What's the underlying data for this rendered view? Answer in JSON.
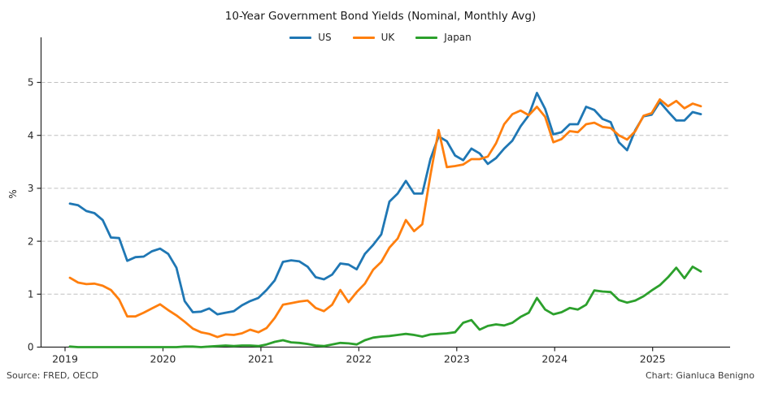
{
  "title": "10-Year Government Bond Yields (Nominal, Monthly Avg)",
  "footer": {
    "source": "Source: FRED, OECD",
    "credit": "Chart: Gianluca Benigno"
  },
  "chart_data": {
    "type": "line",
    "title": "10-Year Government Bond Yields (Nominal, Monthly Avg)",
    "xlabel": "",
    "ylabel": "%",
    "x_start": "2019-01",
    "x_end": "2025-06",
    "x_frequency": "monthly",
    "x_tick_labels": [
      "2019",
      "2020",
      "2021",
      "2022",
      "2023",
      "2024",
      "2025"
    ],
    "y_ticks": [
      0,
      1,
      2,
      3,
      4,
      5
    ],
    "ylim": [
      0,
      5.85
    ],
    "grid": "horizontal-dashed",
    "legend_position": "top-center",
    "series": [
      {
        "name": "US",
        "color": "#1f77b4",
        "values": [
          2.71,
          2.68,
          2.57,
          2.53,
          2.4,
          2.07,
          2.06,
          1.63,
          1.7,
          1.71,
          1.81,
          1.86,
          1.76,
          1.5,
          0.87,
          0.66,
          0.67,
          0.73,
          0.62,
          0.65,
          0.68,
          0.79,
          0.87,
          0.93,
          1.08,
          1.26,
          1.61,
          1.64,
          1.62,
          1.52,
          1.32,
          1.28,
          1.37,
          1.58,
          1.56,
          1.47,
          1.76,
          1.93,
          2.13,
          2.75,
          2.9,
          3.14,
          2.9,
          2.9,
          3.55,
          3.98,
          3.89,
          3.62,
          3.53,
          3.75,
          3.66,
          3.46,
          3.57,
          3.75,
          3.9,
          4.17,
          4.38,
          4.8,
          4.5,
          4.02,
          4.06,
          4.21,
          4.21,
          4.54,
          4.48,
          4.31,
          4.25,
          3.87,
          3.72,
          4.1,
          4.36,
          4.39,
          4.63,
          4.45,
          4.28,
          4.28,
          4.44,
          4.4
        ]
      },
      {
        "name": "UK",
        "color": "#ff7f0e",
        "values": [
          1.31,
          1.22,
          1.19,
          1.2,
          1.16,
          1.08,
          0.9,
          0.58,
          0.58,
          0.65,
          0.73,
          0.81,
          0.7,
          0.6,
          0.48,
          0.35,
          0.28,
          0.25,
          0.19,
          0.24,
          0.23,
          0.26,
          0.33,
          0.28,
          0.36,
          0.55,
          0.8,
          0.83,
          0.86,
          0.88,
          0.74,
          0.68,
          0.8,
          1.08,
          0.85,
          1.04,
          1.2,
          1.46,
          1.61,
          1.88,
          2.05,
          2.4,
          2.19,
          2.32,
          3.25,
          4.1,
          3.4,
          3.42,
          3.45,
          3.55,
          3.55,
          3.6,
          3.85,
          4.21,
          4.4,
          4.47,
          4.38,
          4.54,
          4.35,
          3.87,
          3.93,
          4.08,
          4.06,
          4.21,
          4.24,
          4.16,
          4.14,
          4.0,
          3.92,
          4.08,
          4.37,
          4.42,
          4.68,
          4.55,
          4.65,
          4.51,
          4.6,
          4.55
        ]
      },
      {
        "name": "Japan",
        "color": "#2ca02c",
        "values": [
          0.01,
          0.0,
          0.0,
          0.0,
          0.0,
          0.0,
          0.0,
          0.0,
          0.0,
          0.0,
          0.0,
          0.0,
          0.0,
          0.0,
          0.01,
          0.01,
          0.0,
          0.01,
          0.02,
          0.03,
          0.02,
          0.03,
          0.03,
          0.02,
          0.05,
          0.1,
          0.13,
          0.09,
          0.08,
          0.06,
          0.03,
          0.02,
          0.05,
          0.08,
          0.07,
          0.05,
          0.13,
          0.18,
          0.2,
          0.21,
          0.23,
          0.25,
          0.23,
          0.2,
          0.24,
          0.25,
          0.26,
          0.28,
          0.46,
          0.51,
          0.33,
          0.4,
          0.43,
          0.41,
          0.46,
          0.57,
          0.65,
          0.93,
          0.71,
          0.62,
          0.66,
          0.74,
          0.71,
          0.8,
          1.07,
          1.05,
          1.04,
          0.89,
          0.84,
          0.88,
          0.96,
          1.07,
          1.17,
          1.32,
          1.5,
          1.3,
          1.52,
          1.43
        ]
      }
    ]
  },
  "style": {
    "grid_color": "#c0c0c0",
    "spine_color": "#262626",
    "tick_label_color": "#262626"
  }
}
